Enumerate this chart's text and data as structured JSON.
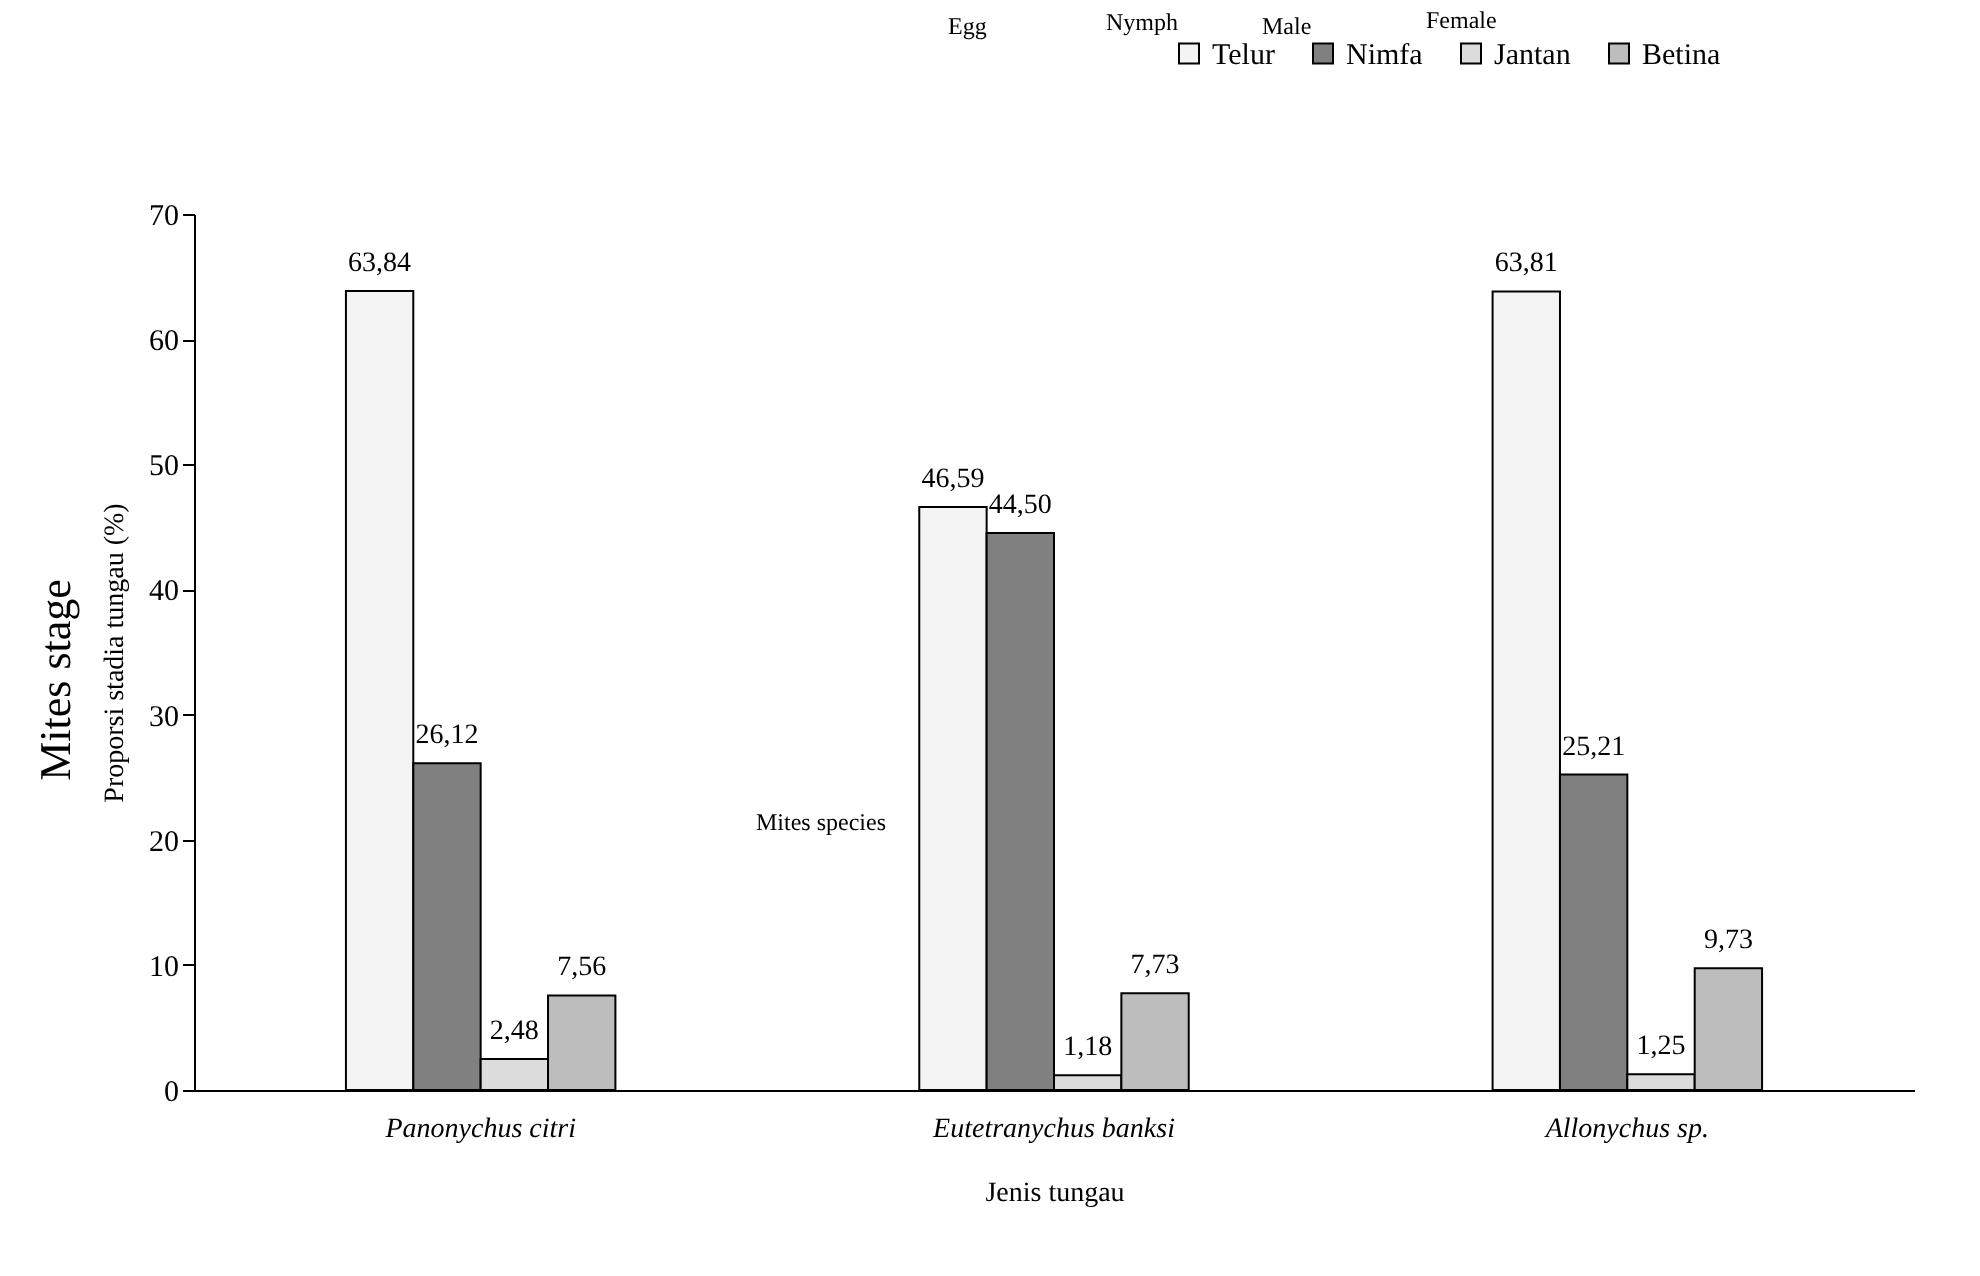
{
  "chart_data": {
    "type": "bar",
    "xlabel": "Jenis tungau",
    "ylabel": "Proporsi stadia tungau (%)",
    "categories": [
      "Panonychus citri",
      "Eutetranychus banksi",
      "Allonychus sp."
    ],
    "series": [
      {
        "name": "Telur",
        "color": "#f4f4f4",
        "values": [
          63.84,
          46.59,
          63.81
        ],
        "value_labels": [
          "63,84",
          "46,59",
          "63,81"
        ]
      },
      {
        "name": "Nimfa",
        "color": "#808080",
        "values": [
          26.12,
          44.5,
          25.21
        ],
        "value_labels": [
          "26,12",
          "44,50",
          "25,21"
        ]
      },
      {
        "name": "Jantan",
        "color": "#dcdcdc",
        "values": [
          2.48,
          1.18,
          1.25
        ],
        "value_labels": [
          "2,48",
          "1,18",
          "1,25"
        ]
      },
      {
        "name": "Betina",
        "color": "#bdbdbd",
        "values": [
          7.56,
          7.73,
          9.73
        ],
        "value_labels": [
          "7,56",
          "7,73",
          "9,73"
        ]
      }
    ],
    "ylim": [
      0,
      70
    ],
    "yticks": [
      0,
      10,
      20,
      30,
      40,
      50,
      60,
      70
    ],
    "grid": false,
    "legend": "top right",
    "annotations": [
      "Egg",
      "Nymph",
      "Male",
      "Female",
      "Mites species",
      "Mites stage"
    ]
  }
}
